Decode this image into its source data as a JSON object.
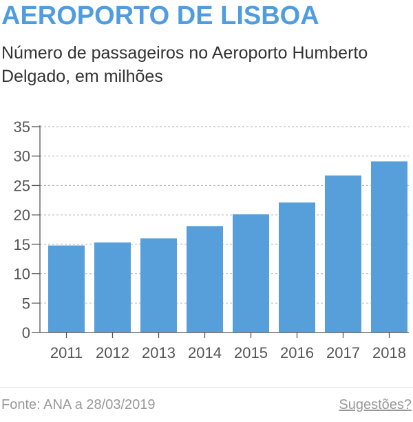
{
  "header": {
    "title": "AEROPORTO DE LISBOA",
    "subtitle": "Número de passageiros no Aeroporto Humberto Delgado, em milhões"
  },
  "chart_data": {
    "type": "bar",
    "categories": [
      "2011",
      "2012",
      "2013",
      "2014",
      "2015",
      "2016",
      "2017",
      "2018"
    ],
    "values": [
      14.8,
      15.3,
      16.0,
      18.1,
      20.1,
      22.1,
      26.7,
      29.1
    ],
    "ylim": [
      0,
      35
    ],
    "yticks": [
      0,
      5,
      10,
      15,
      20,
      25,
      30,
      35
    ],
    "grid": true,
    "bar_color": "#579fdb"
  },
  "footer": {
    "source": "Fonte: ANA a 28/03/2019",
    "suggestions_label": "Sugestões?"
  }
}
